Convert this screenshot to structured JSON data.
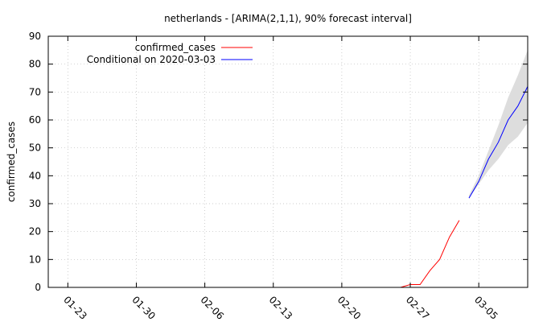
{
  "chart_data": {
    "type": "line",
    "title": "netherlands -  [ARIMA(2,1,1), 90% forecast interval]",
    "xlabel": "",
    "ylabel": "confirmed_cases",
    "ylim": [
      0,
      90
    ],
    "xlim": [
      "2020-01-21",
      "2020-03-10"
    ],
    "yticks": [
      0,
      10,
      20,
      30,
      40,
      50,
      60,
      70,
      80,
      90
    ],
    "xticks": [
      {
        "date": "2020-01-23",
        "label": "01-23"
      },
      {
        "date": "2020-01-30",
        "label": "01-30"
      },
      {
        "date": "2020-02-06",
        "label": "02-06"
      },
      {
        "date": "2020-02-13",
        "label": "02-13"
      },
      {
        "date": "2020-02-20",
        "label": "02-20"
      },
      {
        "date": "2020-02-27",
        "label": "02-27"
      },
      {
        "date": "2020-03-05",
        "label": "03-05"
      }
    ],
    "grid": true,
    "legend_position": "top-left",
    "series": [
      {
        "name": "confirmed_cases",
        "color": "#ff0000",
        "x": [
          "2020-02-26",
          "2020-02-27",
          "2020-02-28",
          "2020-02-29",
          "2020-03-01",
          "2020-03-02",
          "2020-03-03"
        ],
        "values": [
          0,
          1,
          1,
          6,
          10,
          18,
          24
        ]
      },
      {
        "name": "Conditional on 2020-03-03",
        "color": "#0000ff",
        "x": [
          "2020-03-04",
          "2020-03-05",
          "2020-03-06",
          "2020-03-07",
          "2020-03-08",
          "2020-03-09",
          "2020-03-10"
        ],
        "values": [
          32,
          38,
          46,
          52,
          60,
          65,
          72
        ],
        "interval_low": [
          32,
          37,
          42,
          46,
          51,
          54,
          59
        ],
        "interval_high": [
          33,
          40,
          49,
          58,
          68,
          76,
          85
        ],
        "interval_color": "#dddddd"
      }
    ]
  }
}
